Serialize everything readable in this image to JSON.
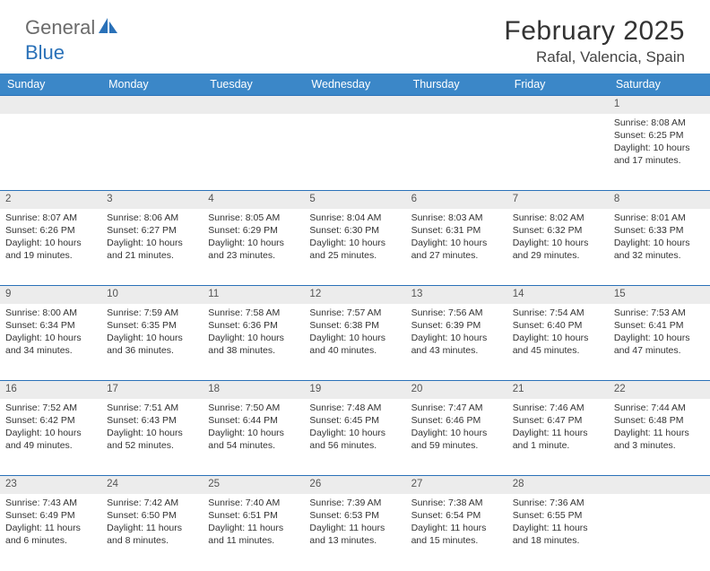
{
  "brand": {
    "part1": "General",
    "part2": "Blue"
  },
  "title": "February 2025",
  "location": "Rafal, Valencia, Spain",
  "colors": {
    "header_bg": "#3b87c8",
    "header_text": "#ffffff",
    "border": "#2a71b8",
    "daynum_bg": "#ececec",
    "body_text": "#333333",
    "logo_gray": "#6b6b6b",
    "logo_blue": "#2a71b8"
  },
  "typography": {
    "title_fontsize": 30,
    "location_fontsize": 17,
    "header_fontsize": 12.5,
    "cell_fontsize": 10.5
  },
  "dayHeaders": [
    "Sunday",
    "Monday",
    "Tuesday",
    "Wednesday",
    "Thursday",
    "Friday",
    "Saturday"
  ],
  "weeks": [
    [
      {
        "n": "",
        "lines": []
      },
      {
        "n": "",
        "lines": []
      },
      {
        "n": "",
        "lines": []
      },
      {
        "n": "",
        "lines": []
      },
      {
        "n": "",
        "lines": []
      },
      {
        "n": "",
        "lines": []
      },
      {
        "n": "1",
        "lines": [
          "Sunrise: 8:08 AM",
          "Sunset: 6:25 PM",
          "Daylight: 10 hours and 17 minutes."
        ]
      }
    ],
    [
      {
        "n": "2",
        "lines": [
          "Sunrise: 8:07 AM",
          "Sunset: 6:26 PM",
          "Daylight: 10 hours and 19 minutes."
        ]
      },
      {
        "n": "3",
        "lines": [
          "Sunrise: 8:06 AM",
          "Sunset: 6:27 PM",
          "Daylight: 10 hours and 21 minutes."
        ]
      },
      {
        "n": "4",
        "lines": [
          "Sunrise: 8:05 AM",
          "Sunset: 6:29 PM",
          "Daylight: 10 hours and 23 minutes."
        ]
      },
      {
        "n": "5",
        "lines": [
          "Sunrise: 8:04 AM",
          "Sunset: 6:30 PM",
          "Daylight: 10 hours and 25 minutes."
        ]
      },
      {
        "n": "6",
        "lines": [
          "Sunrise: 8:03 AM",
          "Sunset: 6:31 PM",
          "Daylight: 10 hours and 27 minutes."
        ]
      },
      {
        "n": "7",
        "lines": [
          "Sunrise: 8:02 AM",
          "Sunset: 6:32 PM",
          "Daylight: 10 hours and 29 minutes."
        ]
      },
      {
        "n": "8",
        "lines": [
          "Sunrise: 8:01 AM",
          "Sunset: 6:33 PM",
          "Daylight: 10 hours and 32 minutes."
        ]
      }
    ],
    [
      {
        "n": "9",
        "lines": [
          "Sunrise: 8:00 AM",
          "Sunset: 6:34 PM",
          "Daylight: 10 hours and 34 minutes."
        ]
      },
      {
        "n": "10",
        "lines": [
          "Sunrise: 7:59 AM",
          "Sunset: 6:35 PM",
          "Daylight: 10 hours and 36 minutes."
        ]
      },
      {
        "n": "11",
        "lines": [
          "Sunrise: 7:58 AM",
          "Sunset: 6:36 PM",
          "Daylight: 10 hours and 38 minutes."
        ]
      },
      {
        "n": "12",
        "lines": [
          "Sunrise: 7:57 AM",
          "Sunset: 6:38 PM",
          "Daylight: 10 hours and 40 minutes."
        ]
      },
      {
        "n": "13",
        "lines": [
          "Sunrise: 7:56 AM",
          "Sunset: 6:39 PM",
          "Daylight: 10 hours and 43 minutes."
        ]
      },
      {
        "n": "14",
        "lines": [
          "Sunrise: 7:54 AM",
          "Sunset: 6:40 PM",
          "Daylight: 10 hours and 45 minutes."
        ]
      },
      {
        "n": "15",
        "lines": [
          "Sunrise: 7:53 AM",
          "Sunset: 6:41 PM",
          "Daylight: 10 hours and 47 minutes."
        ]
      }
    ],
    [
      {
        "n": "16",
        "lines": [
          "Sunrise: 7:52 AM",
          "Sunset: 6:42 PM",
          "Daylight: 10 hours and 49 minutes."
        ]
      },
      {
        "n": "17",
        "lines": [
          "Sunrise: 7:51 AM",
          "Sunset: 6:43 PM",
          "Daylight: 10 hours and 52 minutes."
        ]
      },
      {
        "n": "18",
        "lines": [
          "Sunrise: 7:50 AM",
          "Sunset: 6:44 PM",
          "Daylight: 10 hours and 54 minutes."
        ]
      },
      {
        "n": "19",
        "lines": [
          "Sunrise: 7:48 AM",
          "Sunset: 6:45 PM",
          "Daylight: 10 hours and 56 minutes."
        ]
      },
      {
        "n": "20",
        "lines": [
          "Sunrise: 7:47 AM",
          "Sunset: 6:46 PM",
          "Daylight: 10 hours and 59 minutes."
        ]
      },
      {
        "n": "21",
        "lines": [
          "Sunrise: 7:46 AM",
          "Sunset: 6:47 PM",
          "Daylight: 11 hours and 1 minute."
        ]
      },
      {
        "n": "22",
        "lines": [
          "Sunrise: 7:44 AM",
          "Sunset: 6:48 PM",
          "Daylight: 11 hours and 3 minutes."
        ]
      }
    ],
    [
      {
        "n": "23",
        "lines": [
          "Sunrise: 7:43 AM",
          "Sunset: 6:49 PM",
          "Daylight: 11 hours and 6 minutes."
        ]
      },
      {
        "n": "24",
        "lines": [
          "Sunrise: 7:42 AM",
          "Sunset: 6:50 PM",
          "Daylight: 11 hours and 8 minutes."
        ]
      },
      {
        "n": "25",
        "lines": [
          "Sunrise: 7:40 AM",
          "Sunset: 6:51 PM",
          "Daylight: 11 hours and 11 minutes."
        ]
      },
      {
        "n": "26",
        "lines": [
          "Sunrise: 7:39 AM",
          "Sunset: 6:53 PM",
          "Daylight: 11 hours and 13 minutes."
        ]
      },
      {
        "n": "27",
        "lines": [
          "Sunrise: 7:38 AM",
          "Sunset: 6:54 PM",
          "Daylight: 11 hours and 15 minutes."
        ]
      },
      {
        "n": "28",
        "lines": [
          "Sunrise: 7:36 AM",
          "Sunset: 6:55 PM",
          "Daylight: 11 hours and 18 minutes."
        ]
      },
      {
        "n": "",
        "lines": []
      }
    ]
  ]
}
